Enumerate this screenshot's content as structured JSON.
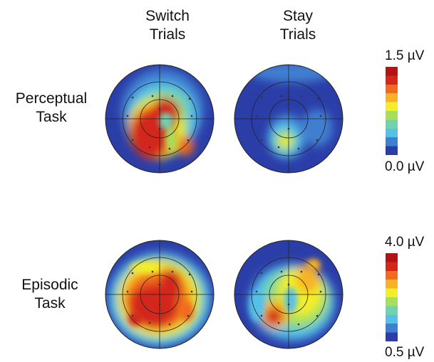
{
  "columns": [
    {
      "line1": "Switch",
      "line2": "Trials"
    },
    {
      "line1": "Stay",
      "line2": "Trials"
    }
  ],
  "rows": [
    {
      "line1": "Perceptual",
      "line2": "Task"
    },
    {
      "line1": "Episodic",
      "line2": "Task"
    }
  ],
  "scales": [
    {
      "max_label": "1.5 µV",
      "min_label": "0.0 µV",
      "max": 1.5,
      "min": 0.0
    },
    {
      "max_label": "4.0 µV",
      "min_label": "0.5 µV",
      "max": 4.0,
      "min": 0.5
    }
  ],
  "colormap": [
    "#2b3ea8",
    "#3f7fd0",
    "#55c0e8",
    "#6fd3b0",
    "#a8df5a",
    "#f2ee2a",
    "#f7b323",
    "#ef6b1d",
    "#d3271a",
    "#b01414"
  ]
}
